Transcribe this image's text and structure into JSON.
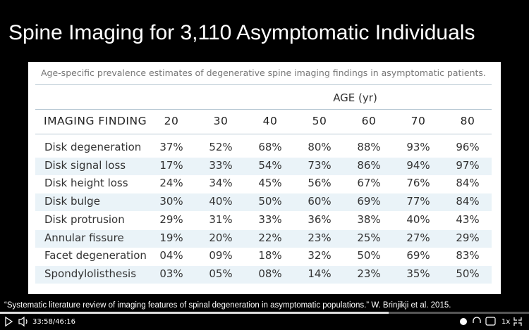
{
  "slide": {
    "title": "Spine Imaging for 3,110 Asymptomatic Individuals",
    "caption": "Age-specific prevalence estimates of degenerative spine imaging findings in asymptomatic patients.",
    "table": {
      "group_header": "AGE (yr)",
      "columns": [
        "IMAGING FINDING",
        "20",
        "30",
        "40",
        "50",
        "60",
        "70",
        "80"
      ],
      "rows": [
        [
          "Disk degeneration",
          "37%",
          "52%",
          "68%",
          "80%",
          "88%",
          "93%",
          "96%"
        ],
        [
          "Disk signal loss",
          "17%",
          "33%",
          "54%",
          "73%",
          "86%",
          "94%",
          "97%"
        ],
        [
          "Disk height loss",
          "24%",
          "34%",
          "45%",
          "56%",
          "67%",
          "76%",
          "84%"
        ],
        [
          "Disk bulge",
          "30%",
          "40%",
          "50%",
          "60%",
          "69%",
          "77%",
          "84%"
        ],
        [
          "Disk protrusion",
          "29%",
          "31%",
          "33%",
          "36%",
          "38%",
          "40%",
          "43%"
        ],
        [
          "Annular fissure",
          "19%",
          "20%",
          "22%",
          "23%",
          "25%",
          "27%",
          "29%"
        ],
        [
          "Facet degeneration",
          "04%",
          "09%",
          "18%",
          "32%",
          "50%",
          "69%",
          "83%"
        ],
        [
          "Spondylolisthesis",
          "03%",
          "05%",
          "08%",
          "14%",
          "23%",
          "35%",
          "50%"
        ]
      ]
    }
  },
  "citation": "“Systematic literature review of imaging features of spinal degeneration in asymptomatic populations.” W. Brinjikji et al. 2015.",
  "player": {
    "time": "33:58/46:16",
    "speed": "1x"
  }
}
